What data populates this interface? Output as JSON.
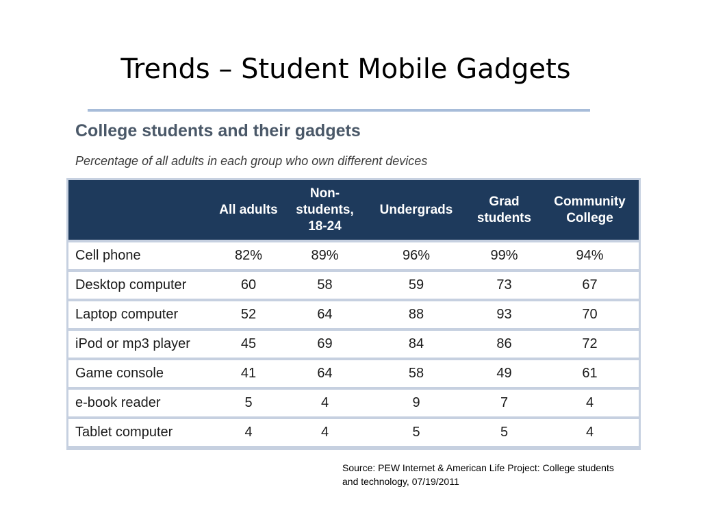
{
  "slide": {
    "title": "Trends – Student Mobile Gadgets",
    "source": "Source:  PEW Internet & American Life Project: College students and technology, 07/19/2011"
  },
  "chart_data": {
    "type": "table",
    "title": "College students and their gadgets",
    "subtitle": "Percentage of all adults in each group who own different devices",
    "columns": [
      "All adults",
      "Non-students, 18-24",
      "Undergrads",
      "Grad students",
      "Community College"
    ],
    "rows": [
      {
        "label": "Cell phone",
        "values": [
          "82%",
          "89%",
          "96%",
          "99%",
          "94%"
        ]
      },
      {
        "label": "Desktop computer",
        "values": [
          "60",
          "58",
          "59",
          "73",
          "67"
        ]
      },
      {
        "label": "Laptop computer",
        "values": [
          "52",
          "64",
          "88",
          "93",
          "70"
        ]
      },
      {
        "label": "iPod or mp3 player",
        "values": [
          "45",
          "69",
          "84",
          "86",
          "72"
        ]
      },
      {
        "label": "Game console",
        "values": [
          "41",
          "64",
          "58",
          "49",
          "61"
        ]
      },
      {
        "label": "e-book reader",
        "values": [
          "5",
          "4",
          "9",
          "7",
          "4"
        ]
      },
      {
        "label": "Tablet computer",
        "values": [
          "4",
          "4",
          "5",
          "5",
          "4"
        ]
      }
    ]
  }
}
